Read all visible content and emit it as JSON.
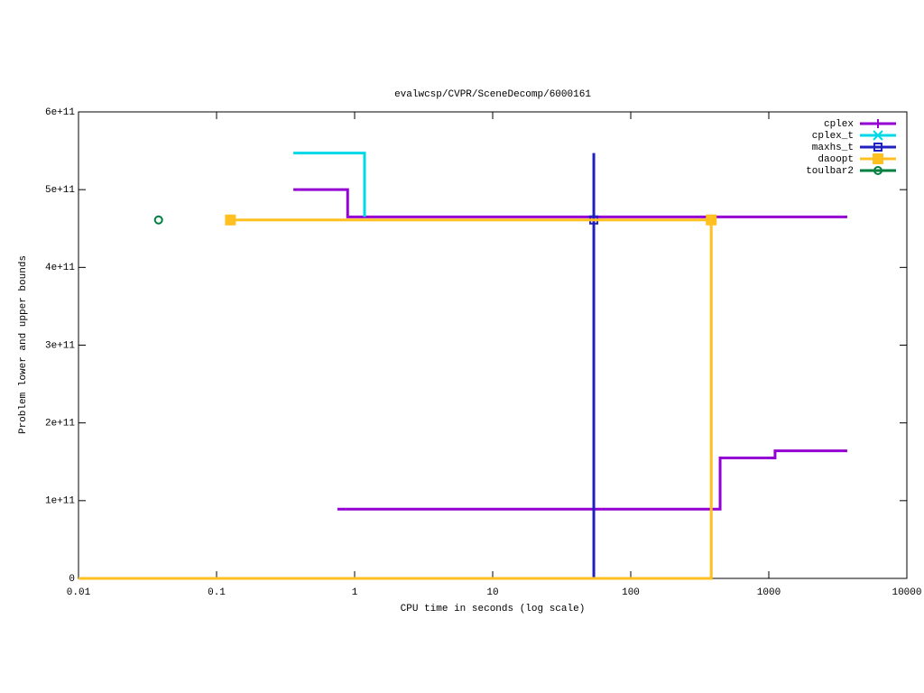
{
  "chart_data": {
    "type": "line",
    "title": "evalwcsp/CVPR/SceneDecomp/6000161",
    "x_label": "CPU time in seconds (log scale)",
    "y_label": "Problem lower and upper bounds",
    "x_log": true,
    "xlim": [
      0.01,
      10000
    ],
    "xticks": [
      0.01,
      0.1,
      1,
      10,
      100,
      1000,
      10000
    ],
    "ylim": [
      0,
      600000000000
    ],
    "yticks": [
      0,
      {
        "value": 100000000000,
        "label": "1e+11"
      },
      {
        "value": 200000000000,
        "label": "2e+11"
      },
      {
        "value": 300000000000,
        "label": "3e+11"
      },
      {
        "value": 400000000000,
        "label": "4e+11"
      },
      {
        "value": 500000000000,
        "label": "5e+11"
      },
      {
        "value": 600000000000,
        "label": "6e+11"
      }
    ],
    "legend": "top-right",
    "series": [
      {
        "name": "cplex",
        "color": "#9400d3",
        "point_style": "plus",
        "x": [
          0.36,
          0.89,
          0.89,
          3700,
          null,
          0.75,
          444,
          444,
          1110,
          1110,
          3700
        ],
        "values": [
          500000000000,
          500000000000,
          465000000000,
          465000000000,
          null,
          89000000000,
          89000000000,
          155000000000,
          155000000000,
          164000000000,
          164000000000
        ],
        "point_x": [],
        "point_values": []
      },
      {
        "name": "cplex_t",
        "color": "#00d8e8",
        "point_style": "cross",
        "x": [
          0.36,
          1.18,
          1.18
        ],
        "values": [
          547000000000,
          547000000000,
          465000000000
        ],
        "point_x": [],
        "point_values": []
      },
      {
        "name": "maxhs_t",
        "color": "#2020c0",
        "point_style": "square-open",
        "x": [
          54,
          54
        ],
        "values": [
          0,
          547000000000
        ],
        "point_x": [
          54
        ],
        "point_values": [
          461000000000
        ]
      },
      {
        "name": "daoopt",
        "color": "#ffc020",
        "point_style": "square-filled",
        "x": [
          0.01,
          383,
          383,
          null,
          0.126,
          383
        ],
        "values": [
          0,
          0,
          461000000000,
          null,
          461000000000,
          461000000000
        ],
        "point_x": [
          0.126,
          383
        ],
        "point_values": [
          461000000000,
          461000000000
        ]
      },
      {
        "name": "toulbar2",
        "color": "#008040",
        "point_style": "circle-open",
        "x": [],
        "values": [],
        "point_x": [
          0.038
        ],
        "point_values": [
          461000000000
        ]
      }
    ]
  }
}
